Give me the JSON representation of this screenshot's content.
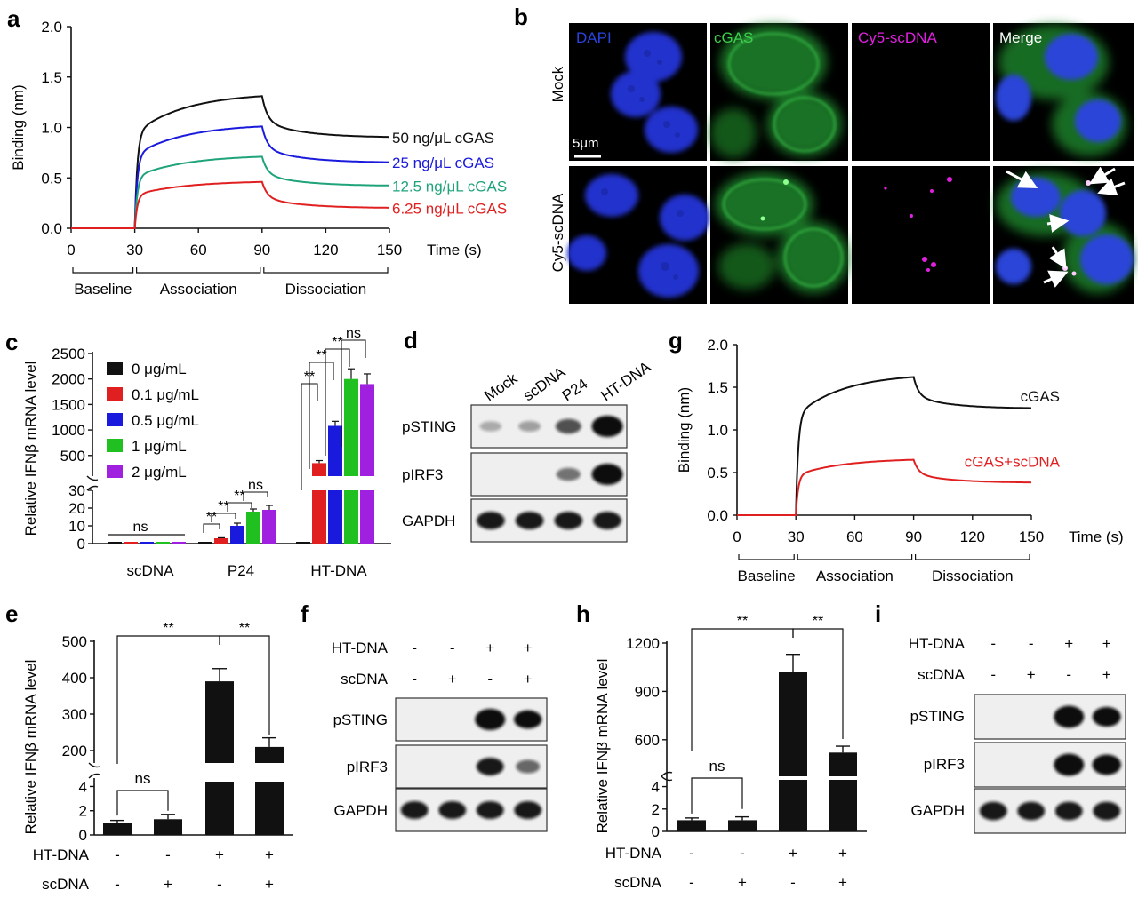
{
  "panels": {
    "a": "a",
    "b": "b",
    "c": "c",
    "d": "d",
    "e": "e",
    "f": "f",
    "g": "g",
    "h": "h",
    "i": "i"
  },
  "colors": {
    "black": "#111111",
    "blue": "#1a1adc",
    "teal": "#1ea37a",
    "red": "#e02020",
    "green": "#20c020",
    "purple": "#a020e0",
    "cell_green": "#2fbf3f",
    "nucleus_blue": "#2233cc",
    "magenta": "#d020d0"
  },
  "chart_data": [
    {
      "id": "a",
      "type": "line",
      "title": "",
      "xlabel": "Time (s)",
      "ylabel": "Binding (nm)",
      "xlim": [
        0,
        150
      ],
      "ylim": [
        0,
        2.0
      ],
      "xticks": [
        "0",
        "30",
        "60",
        "90",
        "120",
        "150"
      ],
      "yticks": [
        "0.0",
        "0.5",
        "1.0",
        "1.5",
        "2.0"
      ],
      "phases": [
        "Baseline",
        "Association",
        "Dissociation"
      ],
      "series": [
        {
          "name": "50 ng/μL cGAS",
          "plateau": 1.31,
          "end": 0.9,
          "color": "#111111"
        },
        {
          "name": "25 ng/μL cGAS",
          "plateau": 1.01,
          "end": 0.65,
          "color": "#1a1adc"
        },
        {
          "name": "12.5 ng/μL cGAS",
          "plateau": 0.71,
          "end": 0.42,
          "color": "#1ea37a"
        },
        {
          "name": "6.25 ng/μL cGAS",
          "plateau": 0.46,
          "end": 0.2,
          "color": "#e02020"
        }
      ]
    },
    {
      "id": "c",
      "type": "bar",
      "ylabel": "Relative IFNβ mRNA level",
      "categories": [
        "scDNA",
        "P24",
        "HT-DNA"
      ],
      "yticks_top": [
        "500",
        "1000",
        "1500",
        "2000",
        "2500"
      ],
      "yticks_bottom": [
        "0",
        "10",
        "20",
        "30"
      ],
      "series": [
        {
          "name": "0 μg/mL",
          "values": [
            1,
            1,
            1
          ],
          "errors": [
            0,
            0,
            0
          ],
          "color": "#111111"
        },
        {
          "name": "0.1 μg/mL",
          "values": [
            1,
            3,
            350
          ],
          "errors": [
            0,
            0.3,
            50
          ],
          "color": "#e02020"
        },
        {
          "name": "0.5 μg/mL",
          "values": [
            1,
            10,
            1080
          ],
          "errors": [
            0,
            1.5,
            90
          ],
          "color": "#1a1adc"
        },
        {
          "name": "1 μg/mL",
          "values": [
            1,
            18,
            2000
          ],
          "errors": [
            0,
            1.5,
            200
          ],
          "color": "#20c020"
        },
        {
          "name": "2 μg/mL",
          "values": [
            1,
            19,
            1900
          ],
          "errors": [
            0,
            2.5,
            200
          ],
          "color": "#a020e0"
        }
      ],
      "annotations": {
        "ns": "ns",
        "sig": "**"
      }
    },
    {
      "id": "e",
      "type": "bar",
      "ylabel": "Relative IFNβ mRNA level",
      "yticks_top": [
        "200",
        "300",
        "400",
        "500"
      ],
      "yticks_bottom": [
        "0",
        "2",
        "4"
      ],
      "values": [
        1,
        1.3,
        390,
        210
      ],
      "errors": [
        0.2,
        0.4,
        35,
        25
      ],
      "rows": [
        {
          "label": "HT-DNA",
          "signs": [
            "-",
            "-",
            "+",
            "+"
          ]
        },
        {
          "label": "scDNA",
          "signs": [
            "-",
            "+",
            "-",
            "+"
          ]
        }
      ],
      "annotations": {
        "ns": "ns",
        "sig1": "**",
        "sig2": "**"
      }
    },
    {
      "id": "g",
      "type": "line",
      "xlabel": "Time (s)",
      "ylabel": "Binding (nm)",
      "xlim": [
        0,
        150
      ],
      "ylim": [
        0,
        2.0
      ],
      "xticks": [
        "0",
        "30",
        "60",
        "90",
        "120",
        "150"
      ],
      "yticks": [
        "0.0",
        "0.5",
        "1.0",
        "1.5",
        "2.0"
      ],
      "phases": [
        "Baseline",
        "Association",
        "Dissociation"
      ],
      "series": [
        {
          "name": "cGAS",
          "plateau": 1.62,
          "end": 1.25,
          "color": "#111111"
        },
        {
          "name": "cGAS+scDNA",
          "plateau": 0.65,
          "end": 0.38,
          "color": "#e02020"
        }
      ]
    },
    {
      "id": "h",
      "type": "bar",
      "ylabel": "Relative IFNβ mRNA level",
      "yticks_top": [
        "600",
        "900",
        "1200"
      ],
      "yticks_bottom": [
        "0",
        "2",
        "4"
      ],
      "values": [
        1,
        1,
        1020,
        520
      ],
      "errors": [
        0.2,
        0.3,
        110,
        40
      ],
      "rows": [
        {
          "label": "HT-DNA",
          "signs": [
            "-",
            "-",
            "+",
            "+"
          ]
        },
        {
          "label": "scDNA",
          "signs": [
            "-",
            "+",
            "-",
            "+"
          ]
        }
      ],
      "annotations": {
        "ns": "ns",
        "sig1": "**",
        "sig2": "**"
      }
    }
  ],
  "panel_b": {
    "columns": [
      "DAPI",
      "cGAS",
      "Cy5-scDNA",
      "Merge"
    ],
    "rows": [
      "Mock",
      "Cy5-scDNA"
    ],
    "scale": "5μm"
  },
  "panel_d": {
    "lanes": [
      "Mock",
      "scDNA",
      "P24",
      "HT-DNA"
    ],
    "blots": [
      "pSTING",
      "pIRF3",
      "GAPDH"
    ]
  },
  "panel_f": {
    "rows": [
      {
        "label": "HT-DNA",
        "signs": [
          "-",
          "-",
          "+",
          "+"
        ]
      },
      {
        "label": "scDNA",
        "signs": [
          "-",
          "+",
          "-",
          "+"
        ]
      }
    ],
    "blots": [
      "pSTING",
      "pIRF3",
      "GAPDH"
    ]
  },
  "panel_i": {
    "rows": [
      {
        "label": "HT-DNA",
        "signs": [
          "-",
          "-",
          "+",
          "+"
        ]
      },
      {
        "label": "scDNA",
        "signs": [
          "-",
          "+",
          "-",
          "+"
        ]
      }
    ],
    "blots": [
      "pSTING",
      "pIRF3",
      "GAPDH"
    ]
  }
}
